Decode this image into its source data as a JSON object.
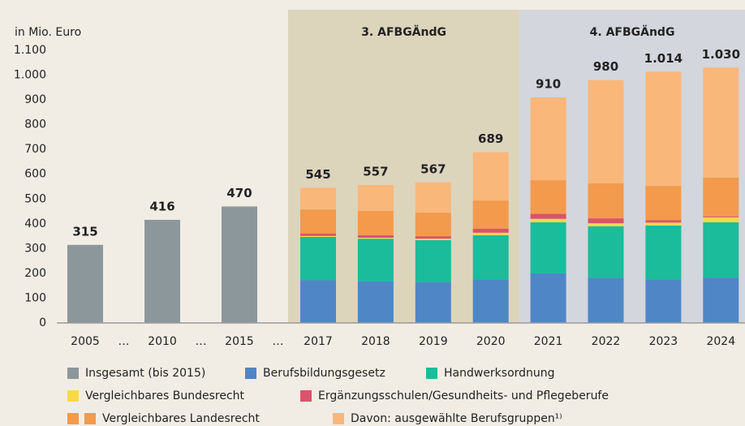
{
  "chart_data": {
    "type": "stacked-bar",
    "ylabel": "in Mio. Euro",
    "categories": [
      "2005",
      "…",
      "2010",
      "…",
      "2015",
      "…",
      "2017",
      "2018",
      "2019",
      "2020",
      "2021",
      "2022",
      "2023",
      "2024"
    ],
    "ylim": [
      0,
      1100
    ],
    "yticks": [
      0,
      100,
      200,
      300,
      400,
      500,
      600,
      700,
      800,
      900,
      {
        "value": 1000,
        "label": "1.000"
      },
      {
        "value": 1100,
        "label": "1.100"
      }
    ],
    "grid": false,
    "periods": [
      {
        "label": "3. AFBGÄndG",
        "from": "2017",
        "to": "2020",
        "color": "#ddd4bc"
      },
      {
        "label": "4. AFBGÄndG",
        "from": "2021",
        "to": "2024",
        "color": "#d3d6dc"
      }
    ],
    "series": [
      {
        "name": "Insgesamt (bis 2015)",
        "color": "#8c979b",
        "values": [
          315,
          null,
          416,
          null,
          470,
          null,
          null,
          null,
          null,
          null,
          null,
          null,
          null,
          null
        ]
      },
      {
        "name": "Berufsbildungsgesetz",
        "color": "#4f86c6",
        "values": [
          null,
          null,
          null,
          null,
          null,
          null,
          172,
          168,
          165,
          175,
          200,
          182,
          175,
          183
        ]
      },
      {
        "name": "Handwerksordnung",
        "color": "#1abc9c",
        "values": [
          null,
          null,
          null,
          null,
          null,
          null,
          175,
          172,
          169,
          179,
          206,
          208,
          218,
          223
        ]
      },
      {
        "name": "Vergleichbares Bundesrecht",
        "color": "#f9d84a",
        "values": [
          null,
          null,
          null,
          null,
          null,
          null,
          4,
          4,
          6,
          10,
          14,
          12,
          12,
          20
        ]
      },
      {
        "name": "Ergänzungsschulen/Gesundheits- und Pflegeberufe",
        "color": "#d9536a",
        "values": [
          null,
          null,
          null,
          null,
          null,
          null,
          10,
          10,
          10,
          16,
          20,
          20,
          10,
          4
        ]
      },
      {
        "name": "Vergleichbares Landesrecht",
        "color": "#f39a4c",
        "values": [
          null,
          null,
          null,
          null,
          null,
          null,
          97,
          98,
          95,
          114,
          136,
          141,
          138,
          156
        ]
      },
      {
        "name": "Davon: ausgewählte Berufsgruppen¹⁾",
        "color": "#f9b77a",
        "values": [
          null,
          null,
          null,
          null,
          null,
          null,
          87,
          105,
          122,
          195,
          334,
          417,
          461,
          444
        ]
      }
    ],
    "totals": {
      "values": [
        315,
        null,
        416,
        null,
        470,
        null,
        545,
        557,
        567,
        689,
        910,
        980,
        1014,
        1030
      ],
      "value_labels": [
        "315",
        null,
        "416",
        null,
        "470",
        null,
        "545",
        "557",
        "567",
        "689",
        "910",
        "980",
        "1.014",
        "1.030"
      ]
    }
  }
}
